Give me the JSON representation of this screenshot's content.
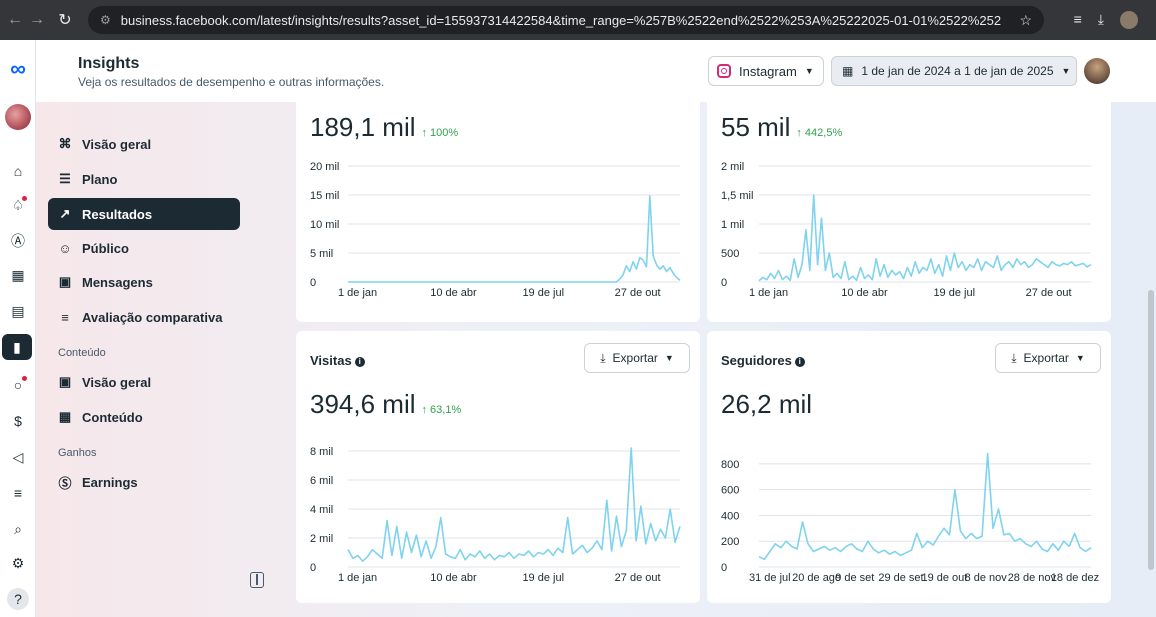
{
  "browser": {
    "url": "business.facebook.com/latest/insights/results?asset_id=155937314422584&time_range=%257B%2522end%2522%253A%25222025-01-01%2522%252C%2522s..."
  },
  "header": {
    "title": "Insights",
    "subtitle": "Veja os resultados de desempenho e outras informações.",
    "platform": "Instagram",
    "date_range": "1 de jan de 2024 a 1 de jan de 2025"
  },
  "sidebar": {
    "items": [
      {
        "label": "Visão geral",
        "icon": "overview-icon"
      },
      {
        "label": "Plano",
        "icon": "list-icon"
      },
      {
        "label": "Resultados",
        "icon": "trend-icon",
        "active": true
      },
      {
        "label": "Público",
        "icon": "audience-icon"
      },
      {
        "label": "Mensagens",
        "icon": "message-icon"
      },
      {
        "label": "Avaliação comparativa",
        "icon": "benchmark-icon"
      }
    ],
    "content_section": "Conteúdo",
    "content_items": [
      {
        "label": "Visão geral",
        "icon": "overview-icon"
      },
      {
        "label": "Conteúdo",
        "icon": "table-icon"
      }
    ],
    "earnings_section": "Ganhos",
    "earnings_items": [
      {
        "label": "Earnings",
        "icon": "dollar-icon"
      }
    ]
  },
  "cards": {
    "top_left": {
      "value": "189,1 mil",
      "delta": "↑ 100%"
    },
    "top_right": {
      "value": "55 mil",
      "delta": "↑ 442,5%"
    },
    "visitas": {
      "title": "Visitas",
      "value": "394,6 mil",
      "delta": "↑ 63,1%",
      "export": "Exportar"
    },
    "seguidores": {
      "title": "Seguidores",
      "value": "26,2 mil",
      "export": "Exportar"
    }
  },
  "colors": {
    "line": "#7fd3ee",
    "delta": "#31a24c",
    "active_nav": "#1c2b33"
  },
  "chart_data": [
    {
      "type": "line",
      "ylim": [
        0,
        20000
      ],
      "yticks": [
        0,
        5000,
        10000,
        15000,
        20000
      ],
      "ytick_labels": [
        "0",
        "5 mil",
        "10 mil",
        "15 mil",
        "20 mil"
      ],
      "xtick_labels": [
        "1 de jan",
        "10 de abr",
        "19 de jul",
        "27 de out"
      ],
      "values": [
        0,
        0,
        0,
        0,
        0,
        0,
        0,
        0,
        0,
        0,
        0,
        0,
        0,
        0,
        0,
        0,
        0,
        0,
        0,
        0,
        0,
        0,
        0,
        0,
        0,
        0,
        0,
        0,
        0,
        0,
        0,
        0,
        0,
        0,
        0,
        0,
        0,
        0,
        0,
        0,
        0,
        0,
        0,
        0,
        0,
        0,
        0,
        0,
        0,
        0,
        0,
        0,
        0,
        0,
        0,
        0,
        0,
        0,
        0,
        0,
        0,
        0,
        0,
        0,
        0,
        0,
        0,
        0,
        0,
        0,
        0,
        0,
        0,
        0,
        0,
        0,
        0,
        0,
        0,
        0,
        0,
        500,
        1200,
        2800,
        1800,
        3500,
        2200,
        4200,
        3800,
        2600,
        14800,
        4500,
        3000,
        2200,
        2800,
        1800,
        2500,
        1500,
        800,
        300
      ]
    },
    {
      "type": "line",
      "ylim": [
        0,
        2000
      ],
      "yticks": [
        0,
        500,
        1000,
        1500,
        2000
      ],
      "ytick_labels": [
        "0",
        "500",
        "1 mil",
        "1,5 mil",
        "2 mil"
      ],
      "xtick_labels": [
        "1 de jan",
        "10 de abr",
        "19 de jul",
        "27 de out"
      ],
      "values": [
        20,
        80,
        40,
        150,
        60,
        200,
        40,
        100,
        30,
        400,
        80,
        300,
        900,
        200,
        1500,
        300,
        1100,
        200,
        500,
        80,
        150,
        60,
        350,
        40,
        100,
        30,
        250,
        60,
        120,
        40,
        400,
        100,
        300,
        80,
        200,
        120,
        180,
        60,
        250,
        100,
        350,
        150,
        250,
        200,
        400,
        150,
        300,
        100,
        450,
        200,
        500,
        250,
        350,
        200,
        300,
        250,
        400,
        200,
        350,
        300,
        250,
        450,
        200,
        300,
        350,
        250,
        400,
        300,
        350,
        250,
        300,
        400,
        350,
        300,
        250,
        350,
        300,
        280,
        320,
        300,
        350,
        280,
        300,
        320,
        260,
        300
      ]
    },
    {
      "type": "line",
      "ylim": [
        0,
        8000
      ],
      "yticks": [
        0,
        2000,
        4000,
        6000,
        8000
      ],
      "ytick_labels": [
        "0",
        "2 mil",
        "4 mil",
        "6 mil",
        "8 mil"
      ],
      "xtick_labels": [
        "1 de jan",
        "10 de abr",
        "19 de jul",
        "27 de out"
      ],
      "values": [
        1200,
        600,
        800,
        400,
        700,
        1200,
        900,
        600,
        3200,
        800,
        2800,
        600,
        2400,
        1000,
        2200,
        700,
        1800,
        600,
        1400,
        3400,
        900,
        700,
        600,
        1200,
        500,
        900,
        700,
        1100,
        600,
        900,
        500,
        800,
        700,
        1000,
        600,
        900,
        800,
        1100,
        700,
        1000,
        900,
        1200,
        800,
        1300,
        1000,
        3400,
        900,
        1200,
        1500,
        1000,
        1300,
        1800,
        1200,
        4600,
        1100,
        3500,
        1400,
        2500,
        8200,
        1800,
        4200,
        1600,
        3000,
        1800,
        2600,
        2000,
        4000,
        1700,
        2800
      ]
    },
    {
      "type": "line",
      "ylim": [
        0,
        900
      ],
      "yticks": [
        0,
        200,
        400,
        600,
        800
      ],
      "ytick_labels": [
        "0",
        "200",
        "400",
        "600",
        "800"
      ],
      "xtick_labels": [
        "31 de jul",
        "20 de ago",
        "9 de set",
        "29 de set",
        "19 de out",
        "8 de nov",
        "28 de nov",
        "18 de dez"
      ],
      "values": [
        80,
        60,
        120,
        180,
        150,
        200,
        160,
        140,
        350,
        180,
        120,
        140,
        160,
        130,
        150,
        120,
        160,
        180,
        140,
        120,
        200,
        140,
        110,
        130,
        100,
        120,
        90,
        110,
        130,
        260,
        150,
        200,
        170,
        240,
        300,
        250,
        600,
        280,
        220,
        260,
        220,
        240,
        880,
        300,
        450,
        250,
        260,
        200,
        220,
        180,
        160,
        200,
        140,
        120,
        180,
        130,
        200,
        160,
        260,
        150,
        120,
        150
      ]
    }
  ]
}
